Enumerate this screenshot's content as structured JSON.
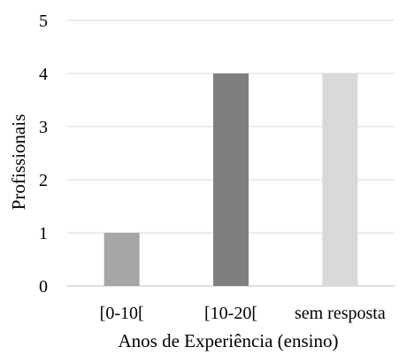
{
  "chart_data": {
    "type": "bar",
    "categories": [
      "[0-10[",
      "[10-20[",
      "sem resposta"
    ],
    "values": [
      1,
      4,
      4
    ],
    "colors": [
      "#a6a6a6",
      "#7f7f7f",
      "#d9d9d9"
    ],
    "xlabel": "Anos de Experiência (ensino)",
    "ylabel": "Profissionais",
    "ylim": [
      0,
      5
    ],
    "yticks": [
      "0",
      "1",
      "2",
      "3",
      "4",
      "5"
    ],
    "grid": true,
    "legend": "none"
  }
}
